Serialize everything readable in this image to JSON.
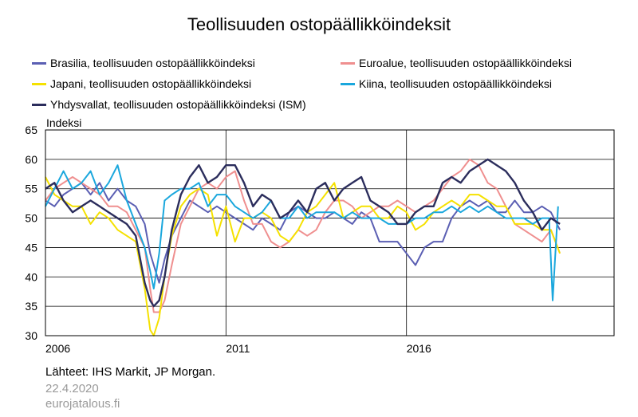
{
  "chart_data": {
    "type": "line",
    "title": "Teollisuuden ostopäällikköindeksit",
    "ylabel": "Indeksi",
    "xlabel": "",
    "ylim": [
      30,
      65
    ],
    "yticks": [
      30,
      35,
      40,
      45,
      50,
      55,
      60,
      65
    ],
    "xlim": [
      2006.0,
      2021.75
    ],
    "xticks": [
      {
        "label": "2006",
        "value": 2006.0
      },
      {
        "label": "2011",
        "value": 2011.0
      },
      {
        "label": "2016",
        "value": 2016.0
      }
    ],
    "grid": true,
    "legend_position": "top",
    "series": [
      {
        "name": "Brasilia, teollisuuden ostopäällikköindeksi",
        "color": "#5b5fb3",
        "x": [
          2006.0,
          2006.25,
          2006.5,
          2006.75,
          2007.0,
          2007.25,
          2007.5,
          2007.75,
          2008.0,
          2008.25,
          2008.5,
          2008.75,
          2008.9,
          2009.0,
          2009.15,
          2009.3,
          2009.5,
          2009.75,
          2010.0,
          2010.25,
          2010.5,
          2010.75,
          2011.0,
          2011.25,
          2011.5,
          2011.75,
          2012.0,
          2012.25,
          2012.5,
          2012.75,
          2013.0,
          2013.25,
          2013.5,
          2013.75,
          2014.0,
          2014.25,
          2014.5,
          2014.75,
          2015.0,
          2015.25,
          2015.5,
          2015.75,
          2016.0,
          2016.25,
          2016.5,
          2016.75,
          2017.0,
          2017.25,
          2017.5,
          2017.75,
          2018.0,
          2018.25,
          2018.5,
          2018.75,
          2019.0,
          2019.25,
          2019.5,
          2019.75,
          2020.0,
          2020.25
        ],
        "y": [
          53,
          52,
          54,
          55,
          56,
          54,
          56,
          53,
          55,
          53,
          52,
          49,
          44,
          42,
          39,
          43,
          47,
          50,
          53,
          52,
          51,
          52,
          51,
          50,
          49,
          48,
          50,
          49,
          48,
          51,
          52,
          51,
          50,
          50,
          51,
          50,
          49,
          51,
          50,
          46,
          46,
          46,
          44,
          42,
          45,
          46,
          46,
          50,
          52,
          53,
          52,
          53,
          51,
          51,
          53,
          51,
          51,
          52,
          51,
          48
        ]
      },
      {
        "name": "Euroalue, teollisuuden ostopäällikköindeksi",
        "color": "#ef8f8f",
        "x": [
          2006.0,
          2006.25,
          2006.5,
          2006.75,
          2007.0,
          2007.25,
          2007.5,
          2007.75,
          2008.0,
          2008.25,
          2008.5,
          2008.75,
          2008.9,
          2009.0,
          2009.15,
          2009.3,
          2009.5,
          2009.75,
          2010.0,
          2010.25,
          2010.5,
          2010.75,
          2011.0,
          2011.25,
          2011.5,
          2011.75,
          2012.0,
          2012.25,
          2012.5,
          2012.75,
          2013.0,
          2013.25,
          2013.5,
          2013.75,
          2014.0,
          2014.25,
          2014.5,
          2014.75,
          2015.0,
          2015.25,
          2015.5,
          2015.75,
          2016.0,
          2016.25,
          2016.5,
          2016.75,
          2017.0,
          2017.25,
          2017.5,
          2017.75,
          2018.0,
          2018.25,
          2018.5,
          2018.75,
          2019.0,
          2019.25,
          2019.5,
          2019.75,
          2020.0,
          2020.25
        ],
        "y": [
          53,
          55,
          56,
          57,
          56,
          55,
          54,
          52,
          52,
          51,
          48,
          45,
          38,
          34,
          34,
          36,
          42,
          49,
          52,
          55,
          56,
          55,
          57,
          58,
          53,
          49,
          49,
          46,
          45,
          46,
          48,
          47,
          48,
          51,
          53,
          53,
          52,
          50,
          51,
          52,
          52,
          53,
          52,
          51,
          52,
          53,
          55,
          57,
          58,
          60,
          59,
          56,
          55,
          52,
          49,
          48,
          47,
          46,
          48,
          44
        ]
      },
      {
        "name": "Japani, teollisuuden ostopäällikköindeksi",
        "color": "#f5e100",
        "x": [
          2006.0,
          2006.25,
          2006.5,
          2006.75,
          2007.0,
          2007.25,
          2007.5,
          2007.75,
          2008.0,
          2008.25,
          2008.5,
          2008.75,
          2008.9,
          2009.0,
          2009.15,
          2009.3,
          2009.5,
          2009.75,
          2010.0,
          2010.25,
          2010.5,
          2010.75,
          2011.0,
          2011.25,
          2011.5,
          2011.75,
          2012.0,
          2012.25,
          2012.5,
          2012.75,
          2013.0,
          2013.25,
          2013.5,
          2013.75,
          2014.0,
          2014.25,
          2014.5,
          2014.75,
          2015.0,
          2015.25,
          2015.5,
          2015.75,
          2016.0,
          2016.25,
          2016.5,
          2016.75,
          2017.0,
          2017.25,
          2017.5,
          2017.75,
          2018.0,
          2018.25,
          2018.5,
          2018.75,
          2019.0,
          2019.25,
          2019.5,
          2019.75,
          2020.0,
          2020.25
        ],
        "y": [
          57,
          54,
          53,
          52,
          52,
          49,
          51,
          50,
          48,
          47,
          46,
          38,
          31,
          30,
          33,
          40,
          47,
          52,
          54,
          55,
          54,
          47,
          52,
          46,
          50,
          50,
          51,
          50,
          47,
          46,
          48,
          51,
          52,
          54,
          56,
          50,
          51,
          52,
          52,
          50,
          50,
          52,
          51,
          48,
          49,
          51,
          52,
          53,
          52,
          54,
          54,
          53,
          52,
          52,
          49,
          49,
          49,
          48,
          48,
          44
        ]
      },
      {
        "name": "Kiina, teollisuuden ostopäällikköindeksi",
        "color": "#1aa7dd",
        "x": [
          2006.0,
          2006.25,
          2006.5,
          2006.75,
          2007.0,
          2007.25,
          2007.5,
          2007.75,
          2008.0,
          2008.25,
          2008.5,
          2008.75,
          2008.9,
          2009.0,
          2009.15,
          2009.3,
          2009.5,
          2009.75,
          2010.0,
          2010.25,
          2010.5,
          2010.75,
          2011.0,
          2011.25,
          2011.5,
          2011.75,
          2012.0,
          2012.25,
          2012.5,
          2012.75,
          2013.0,
          2013.25,
          2013.5,
          2013.75,
          2014.0,
          2014.25,
          2014.5,
          2014.75,
          2015.0,
          2015.25,
          2015.5,
          2015.75,
          2016.0,
          2016.25,
          2016.5,
          2016.75,
          2017.0,
          2017.25,
          2017.5,
          2017.75,
          2018.0,
          2018.25,
          2018.5,
          2018.75,
          2019.0,
          2019.25,
          2019.5,
          2019.75,
          2019.95,
          2020.05,
          2020.2
        ],
        "y": [
          52,
          55,
          58,
          55,
          56,
          58,
          54,
          56,
          59,
          53,
          49,
          45,
          41,
          38,
          44,
          53,
          54,
          55,
          55,
          56,
          52,
          54,
          54,
          52,
          51,
          50,
          51,
          53,
          50,
          50,
          52,
          50,
          51,
          51,
          51,
          50,
          51,
          50,
          50,
          50,
          49,
          49,
          49,
          50,
          50,
          51,
          51,
          52,
          51,
          52,
          51,
          52,
          51,
          50,
          50,
          50,
          49,
          50,
          50,
          36,
          52
        ]
      },
      {
        "name": "Yhdysvallat, teollisuuden ostopäällikköindeksi (ISM)",
        "color": "#2b2d5c",
        "x": [
          2006.0,
          2006.25,
          2006.5,
          2006.75,
          2007.0,
          2007.25,
          2007.5,
          2007.75,
          2008.0,
          2008.25,
          2008.5,
          2008.75,
          2008.9,
          2009.0,
          2009.15,
          2009.3,
          2009.5,
          2009.75,
          2010.0,
          2010.25,
          2010.5,
          2010.75,
          2011.0,
          2011.25,
          2011.5,
          2011.75,
          2012.0,
          2012.25,
          2012.5,
          2012.75,
          2013.0,
          2013.25,
          2013.5,
          2013.75,
          2014.0,
          2014.25,
          2014.5,
          2014.75,
          2015.0,
          2015.25,
          2015.5,
          2015.75,
          2016.0,
          2016.25,
          2016.5,
          2016.75,
          2017.0,
          2017.25,
          2017.5,
          2017.75,
          2018.0,
          2018.25,
          2018.5,
          2018.75,
          2019.0,
          2019.25,
          2019.5,
          2019.75,
          2020.0,
          2020.25
        ],
        "y": [
          55,
          56,
          53,
          51,
          52,
          53,
          52,
          51,
          50,
          49,
          47,
          39,
          36,
          35,
          36,
          40,
          48,
          54,
          57,
          59,
          56,
          57,
          59,
          59,
          56,
          52,
          54,
          53,
          50,
          51,
          53,
          51,
          55,
          56,
          53,
          55,
          56,
          57,
          53,
          52,
          51,
          49,
          49,
          51,
          52,
          52,
          56,
          57,
          56,
          58,
          59,
          60,
          59,
          58,
          56,
          53,
          51,
          48,
          50,
          49
        ]
      }
    ]
  },
  "footer": {
    "source": "Lähteet:  IHS Markit,  JP Morgan.",
    "date": "22.4.2020",
    "site": "eurojatalous.fi"
  }
}
